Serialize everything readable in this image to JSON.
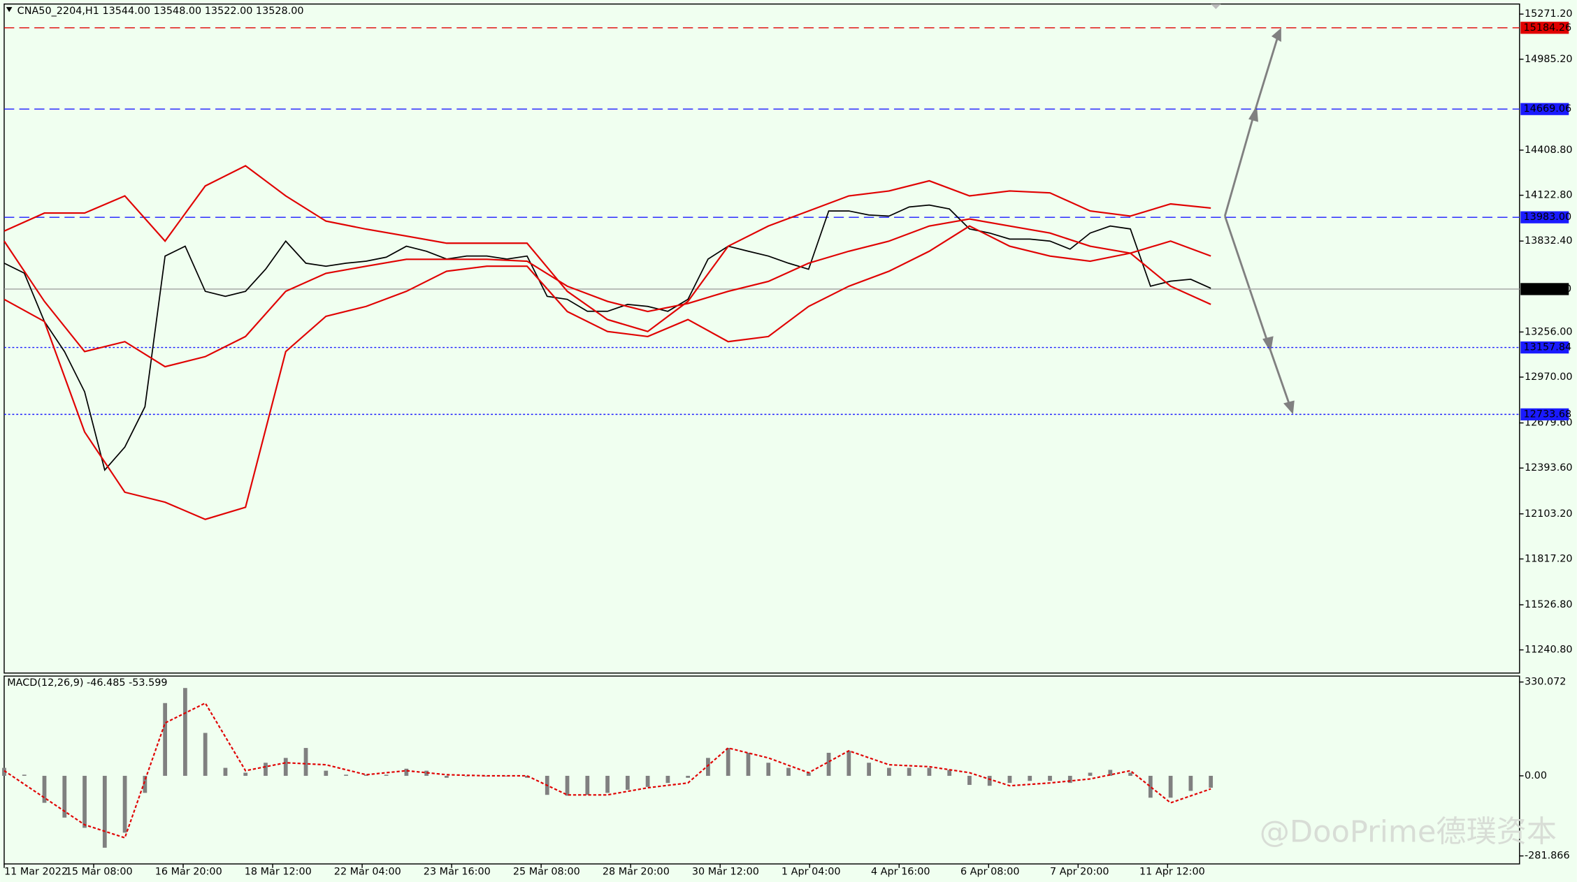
{
  "chart_data": [
    {
      "type": "line",
      "title": "CNA50_2204,H1  13544.00 13548.00 13522.00 13528.00",
      "x_labels": [
        "11 Mar 2022",
        "15 Mar 08:00",
        "16 Mar 20:00",
        "18 Mar 12:00",
        "22 Mar 04:00",
        "23 Mar 16:00",
        "25 Mar 08:00",
        "28 Mar 20:00",
        "30 Mar 12:00",
        "1 Apr 04:00",
        "4 Apr 16:00",
        "6 Apr 08:00",
        "7 Apr 20:00",
        "11 Apr 12:00"
      ],
      "ylim": [
        11094,
        15335
      ],
      "yticks": [
        {
          "value": 15271.2,
          "label": "15271.20"
        },
        {
          "value": 14985.2,
          "label": "14985.20"
        },
        {
          "value": 14408.8,
          "label": "14408.80"
        },
        {
          "value": 14122.8,
          "label": "14122.80"
        },
        {
          "value": 13832.4,
          "label": "13832.40"
        },
        {
          "value": 13256,
          "label": "13256.00"
        },
        {
          "value": 12970,
          "label": "12970.00"
        },
        {
          "value": 12679.6,
          "label": "12679.60"
        },
        {
          "value": 12393.6,
          "label": "12393.60"
        },
        {
          "value": 12103.2,
          "label": "12103.20"
        },
        {
          "value": 11817.2,
          "label": "11817.20"
        },
        {
          "value": 11526.8,
          "label": "11526.80"
        },
        {
          "value": 11240.8,
          "label": "11240.80"
        }
      ],
      "levels": [
        {
          "value": 15184.26,
          "label": "15184.26",
          "color": "#e00000",
          "style": "dashed"
        },
        {
          "value": 14669.06,
          "label": "14669.06",
          "color": "#1a1aff",
          "style": "dashed"
        },
        {
          "value": 13983,
          "label": "13983.00",
          "color": "#1a1aff",
          "style": "dashed"
        },
        {
          "value": 13528,
          "label": "13528.00",
          "color": "#a0a0a0",
          "style": "solid"
        },
        {
          "value": 13157.84,
          "label": "13157.84",
          "color": "#1a1aff",
          "style": "dotted"
        },
        {
          "value": 12733.68,
          "label": "12733.68",
          "color": "#1a1aff",
          "style": "dotted"
        }
      ],
      "series": [
        {
          "color": "#000000",
          "values": [
            13692,
            13629,
            13323,
            13132,
            12877,
            12381,
            12527,
            12782,
            13737,
            13800,
            13514,
            13482,
            13514,
            13654,
            13832,
            13692,
            13673,
            13692,
            13705,
            13730,
            13800,
            13768,
            13718,
            13737,
            13737,
            13718,
            13737,
            13482,
            13463,
            13387,
            13387,
            13431,
            13418,
            13387,
            13463,
            13718,
            13800,
            13768,
            13737,
            13692,
            13654,
            14023,
            14023,
            13998,
            13991,
            14049,
            14061,
            14036,
            13909,
            13883,
            13845,
            13845,
            13832,
            13781,
            13883,
            13928,
            13909,
            13546,
            13578,
            13590,
            13533
          ]
        },
        {
          "color": "#e00000",
          "values": [
            13896,
            14010,
            14010,
            14119,
            13832,
            14182,
            14310,
            14119,
            13959,
            13908,
            13864,
            13819,
            13819,
            13819,
            13514,
            13335,
            13259,
            13450,
            13800,
            13928,
            14023,
            14119,
            14150,
            14214,
            14119,
            14150,
            14138,
            14023,
            13991,
            14068,
            14042
          ]
        },
        {
          "color": "#e00000",
          "values": [
            13832,
            13450,
            13132,
            13195,
            13036,
            13100,
            13227,
            13514,
            13628,
            13673,
            13717,
            13717,
            13717,
            13705,
            13546,
            13450,
            13386,
            13437,
            13514,
            13577,
            13692,
            13768,
            13832,
            13928,
            13972,
            13928,
            13883,
            13800,
            13756,
            13832,
            13737
          ]
        },
        {
          "color": "#e00000",
          "values": [
            13463,
            13323,
            12622,
            12240,
            12177,
            12068,
            12145,
            13132,
            13355,
            13418,
            13514,
            13641,
            13673,
            13673,
            13386,
            13259,
            13227,
            13335,
            13195,
            13227,
            13418,
            13546,
            13641,
            13768,
            13928,
            13800,
            13737,
            13705,
            13756,
            13546,
            13431
          ]
        }
      ]
    },
    {
      "type": "bar",
      "title": "MACD(12,26,9) -46.485 -53.599",
      "ylim": [
        -310,
        351
      ],
      "yticks": [
        330.072,
        {
          "value": 0,
          "label": "0.00"
        },
        -281.866
      ],
      "series": [
        {
          "type": "bar",
          "color": "#808080",
          "values": [
            28,
            4,
            -95,
            -147,
            -183,
            -253,
            -200,
            -60,
            256,
            309,
            151,
            28,
            11,
            46,
            63,
            98,
            18,
            4,
            4,
            4,
            25,
            18,
            -7,
            0,
            0,
            0,
            -7,
            -67,
            -70,
            -67,
            -60,
            -49,
            -39,
            -25,
            -7,
            63,
            98,
            81,
            46,
            28,
            11,
            81,
            88,
            46,
            28,
            28,
            28,
            21,
            -32,
            -35,
            -25,
            -18,
            -18,
            -25,
            11,
            21,
            11,
            -77,
            -77,
            -53,
            -42
          ]
        },
        {
          "type": "line",
          "color": "#e00000",
          "values": [
            18,
            -77,
            -172,
            -218,
            186,
            256,
            18,
            46,
            39,
            4,
            18,
            4,
            0,
            0,
            -67,
            -67,
            -42,
            -25,
            98,
            63,
            11,
            88,
            39,
            32,
            11,
            -35,
            -25,
            -11,
            18,
            -95,
            -46
          ]
        }
      ]
    }
  ],
  "watermark": "@DooPrime德璞资本"
}
